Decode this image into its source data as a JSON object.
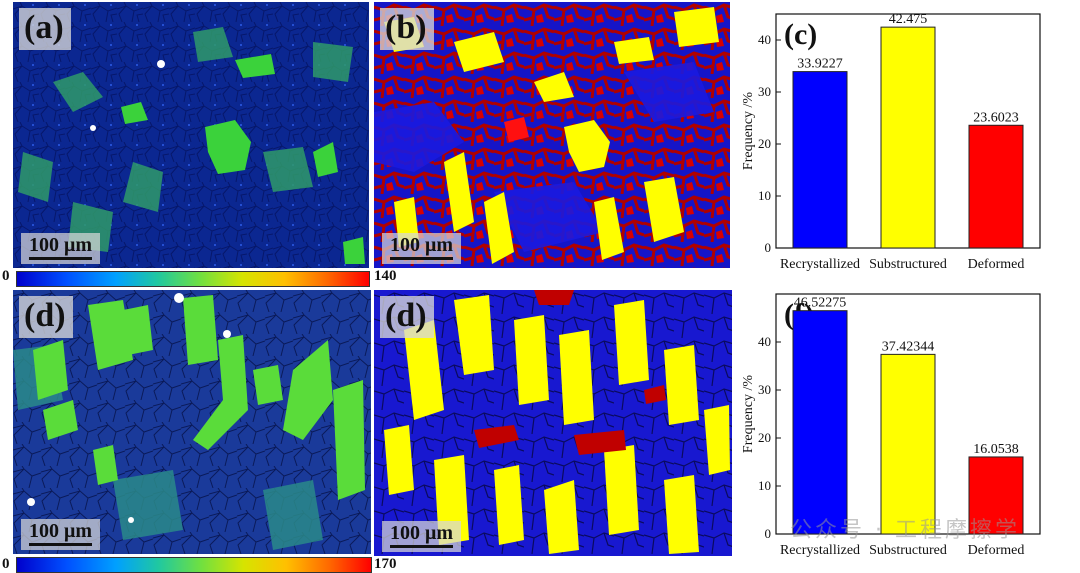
{
  "panels": {
    "a": {
      "label": "(a)",
      "scale_bar": "100 μm"
    },
    "b": {
      "label": "(b)",
      "scale_bar": "100 μm"
    },
    "d1": {
      "label": "(d)",
      "scale_bar": "100 μm"
    },
    "d2": {
      "label": "(d)",
      "scale_bar": "100 μm"
    }
  },
  "colorbars": [
    {
      "min": "0",
      "max": "140"
    },
    {
      "min": "0",
      "max": "170"
    }
  ],
  "map_colors": {
    "recrystallized": "#0a1ed8",
    "substructured": "#fff200",
    "deformed": "#e00000"
  },
  "watermark": "公众号 · 工程摩擦学",
  "chart_data": [
    {
      "type": "bar",
      "panel_label": "(c)",
      "categories": [
        "Recrystallized",
        "Substructured",
        "Deformed"
      ],
      "values": [
        33.9227,
        42.475,
        23.6023
      ],
      "value_labels": [
        "33.9227",
        "42.475",
        "23.6023"
      ],
      "colors": [
        "#0000ff",
        "#ffff00",
        "#ff0000"
      ],
      "ylabel": "Frequency /%",
      "ylim": [
        0,
        45
      ],
      "yticks": [
        0,
        10,
        20,
        30,
        40
      ]
    },
    {
      "type": "bar",
      "panel_label": "(f)",
      "categories": [
        "Recrystallized",
        "Substructured",
        "Deformed"
      ],
      "values": [
        46.52275,
        37.42344,
        16.0538
      ],
      "value_labels": [
        "46.52275",
        "37.42344",
        "16.0538"
      ],
      "colors": [
        "#0000ff",
        "#ffff00",
        "#ff0000"
      ],
      "ylabel": "Frequency /%",
      "ylim": [
        0,
        50
      ],
      "yticks": [
        0,
        10,
        20,
        30,
        40
      ]
    }
  ]
}
